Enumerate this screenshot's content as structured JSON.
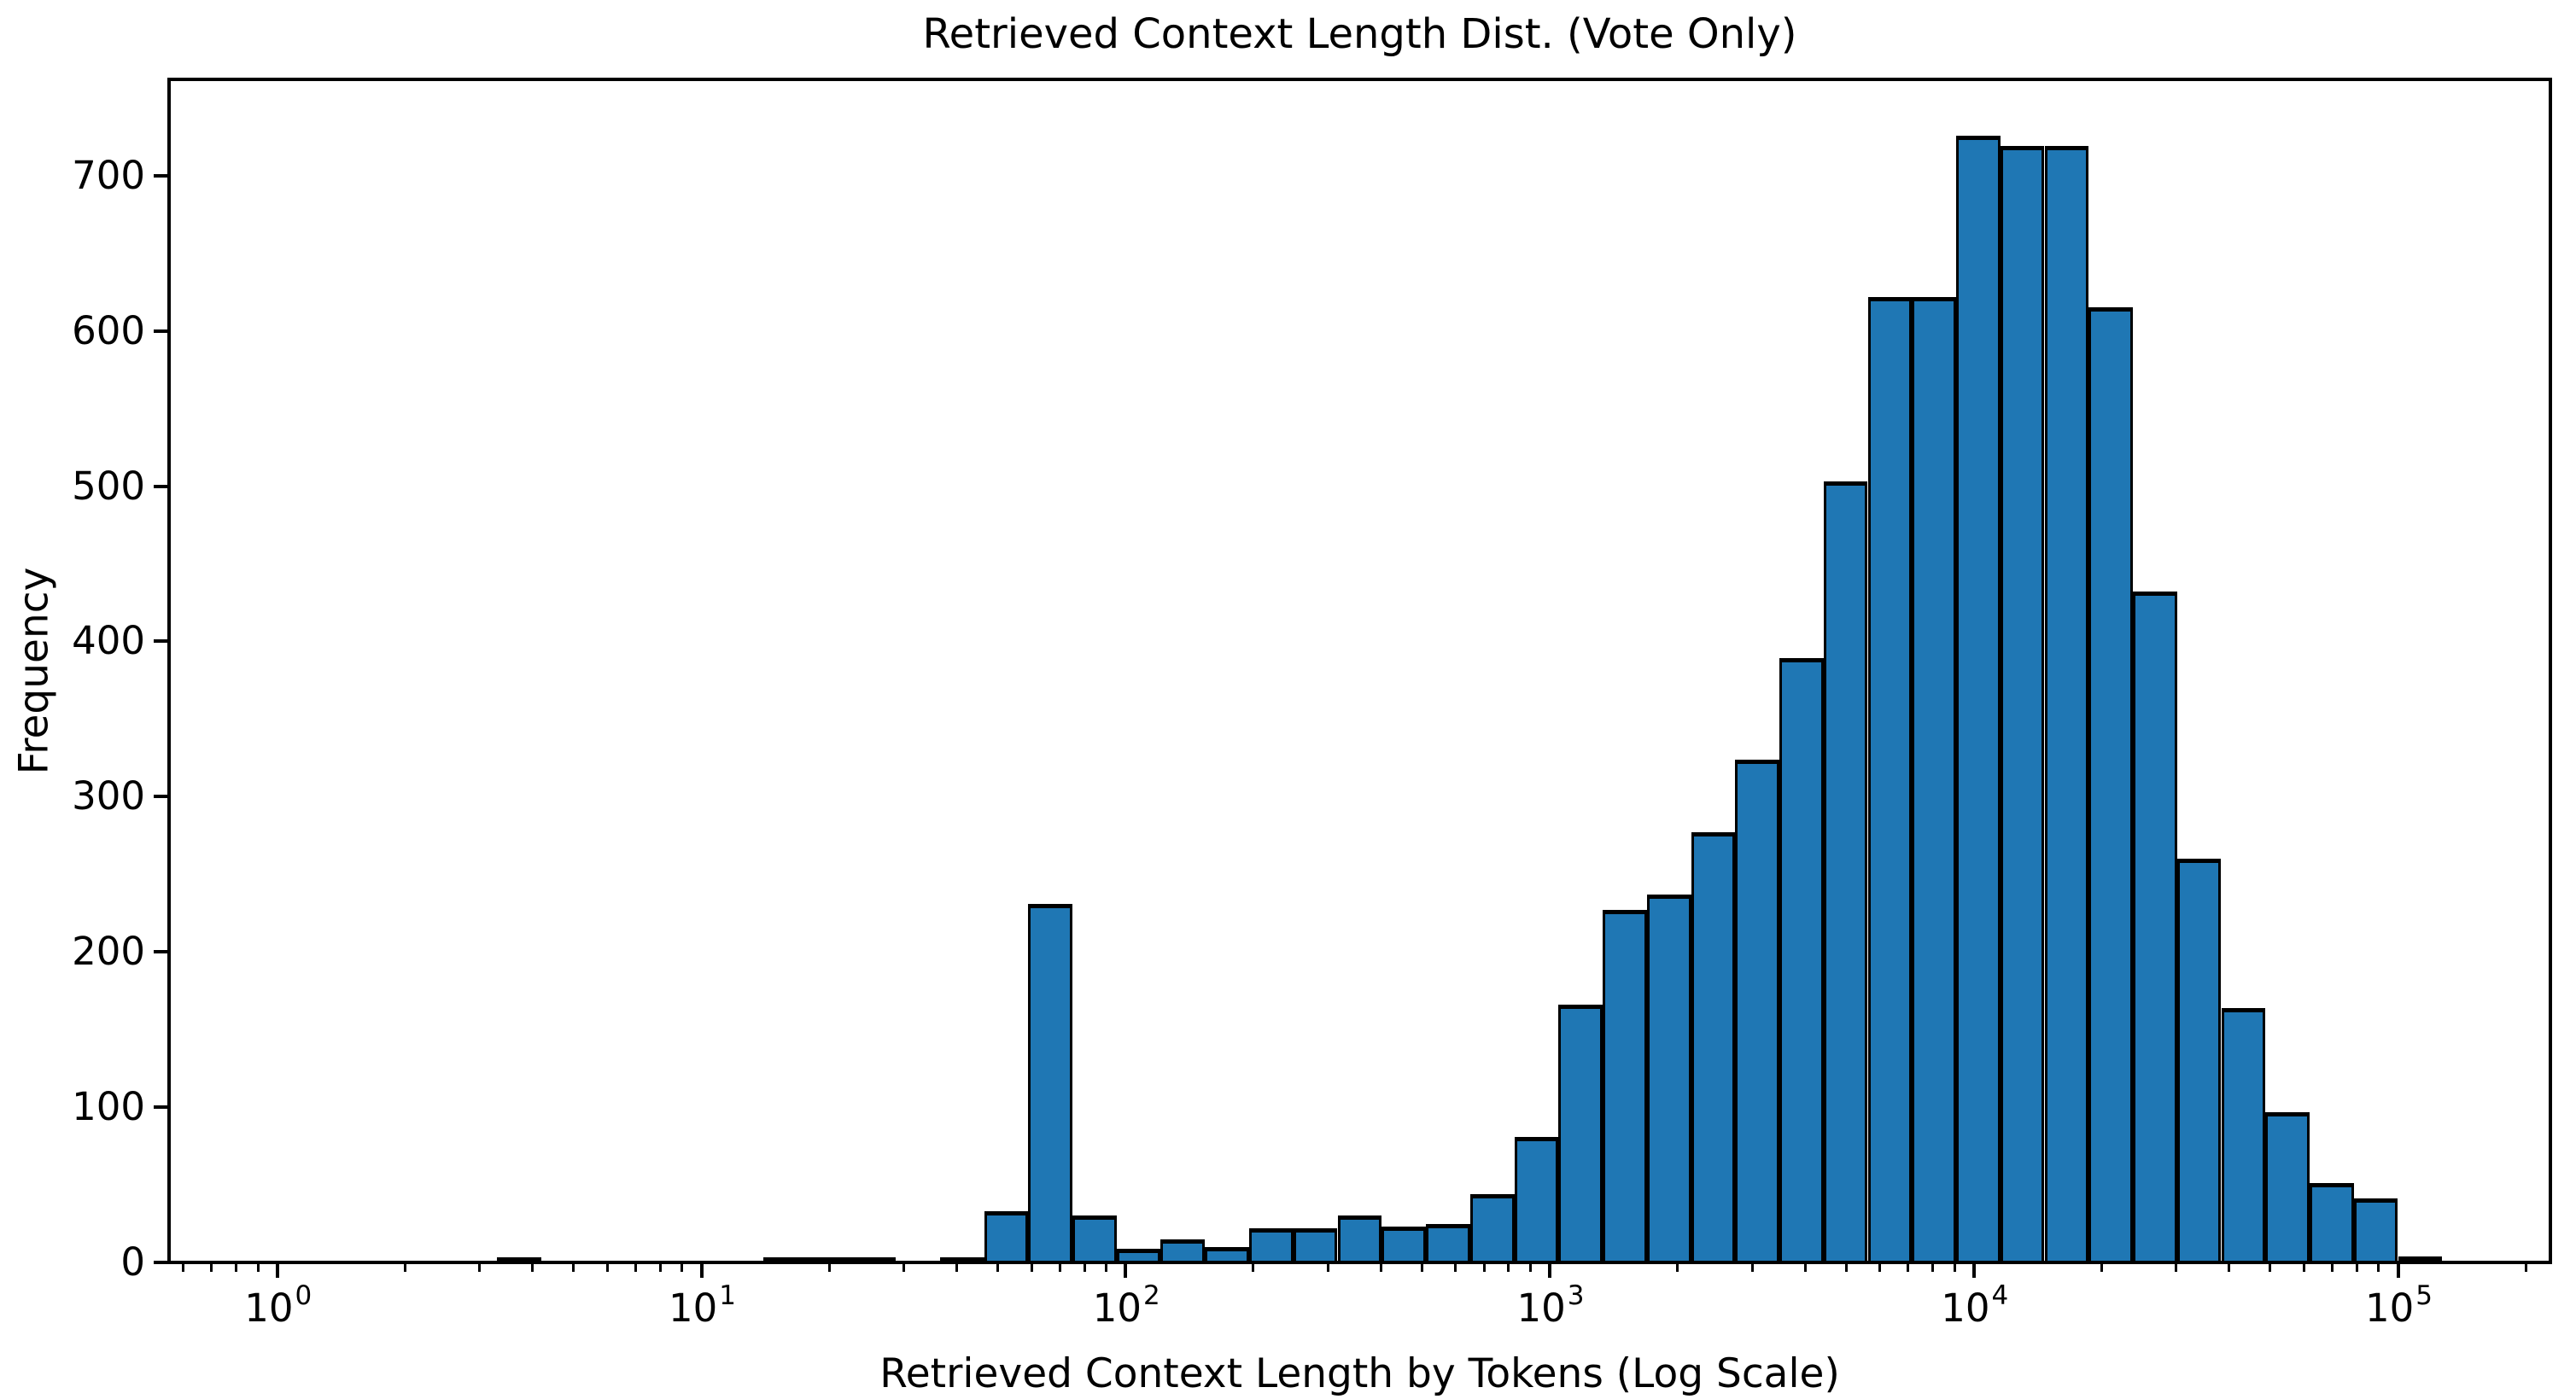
{
  "figure": {
    "title": "Retrieved Context Length Dist. (Vote Only)"
  },
  "axes": {
    "xlabel": "Retrieved Context Length by Tokens (Log Scale)",
    "ylabel": "Frequency",
    "x_scale": "log",
    "xlim_log10": [
      -0.2552,
      5.3593
    ],
    "ylim": [
      0,
      762
    ],
    "x_major_ticks": [
      {
        "base": "10",
        "exp": "0",
        "value": 1
      },
      {
        "base": "10",
        "exp": "1",
        "value": 10
      },
      {
        "base": "10",
        "exp": "2",
        "value": 100
      },
      {
        "base": "10",
        "exp": "3",
        "value": 1000
      },
      {
        "base": "10",
        "exp": "4",
        "value": 10000
      },
      {
        "base": "10",
        "exp": "5",
        "value": 100000
      }
    ],
    "y_ticks": [
      "0",
      "100",
      "200",
      "300",
      "400",
      "500",
      "600",
      "700"
    ]
  },
  "chart_data": {
    "type": "bar",
    "subtype": "histogram-log-bins",
    "title": "Retrieved Context Length Dist. (Vote Only)",
    "xlabel": "Retrieved Context Length by Tokens (Log Scale)",
    "ylabel": "Frequency",
    "x_scale": "log",
    "xlim_log10": [
      -0.2552,
      5.3593
    ],
    "ylim": [
      0,
      762
    ],
    "grid": false,
    "bar_color": "#1f77b4",
    "bar_edge_color": "#000000",
    "bins": [
      {
        "from": 3.3,
        "to": 4.2,
        "count": 2
      },
      {
        "from": 14,
        "to": 17.8,
        "count": 1
      },
      {
        "from": 17.8,
        "to": 22.6,
        "count": 1
      },
      {
        "from": 22.6,
        "to": 28.7,
        "count": 1
      },
      {
        "from": 36.5,
        "to": 46.4,
        "count": 1
      },
      {
        "from": 46.4,
        "to": 59,
        "count": 33
      },
      {
        "from": 59,
        "to": 75,
        "count": 231
      },
      {
        "from": 75,
        "to": 95.3,
        "count": 30
      },
      {
        "from": 95.3,
        "to": 121,
        "count": 9
      },
      {
        "from": 121,
        "to": 154,
        "count": 15
      },
      {
        "from": 154,
        "to": 196,
        "count": 10
      },
      {
        "from": 196,
        "to": 249,
        "count": 22
      },
      {
        "from": 249,
        "to": 316,
        "count": 22
      },
      {
        "from": 316,
        "to": 402,
        "count": 30
      },
      {
        "from": 402,
        "to": 511,
        "count": 23
      },
      {
        "from": 511,
        "to": 649,
        "count": 25
      },
      {
        "from": 649,
        "to": 825,
        "count": 44
      },
      {
        "from": 825,
        "to": 1049,
        "count": 81
      },
      {
        "from": 1049,
        "to": 1334,
        "count": 166
      },
      {
        "from": 1334,
        "to": 1695,
        "count": 227
      },
      {
        "from": 1695,
        "to": 2154,
        "count": 237
      },
      {
        "from": 2154,
        "to": 2738,
        "count": 277
      },
      {
        "from": 2738,
        "to": 3481,
        "count": 324
      },
      {
        "from": 3481,
        "to": 4424,
        "count": 389
      },
      {
        "from": 4424,
        "to": 5623,
        "count": 503
      },
      {
        "from": 5623,
        "to": 7148,
        "count": 622
      },
      {
        "from": 7148,
        "to": 9086,
        "count": 622
      },
      {
        "from": 9086,
        "to": 11548,
        "count": 726
      },
      {
        "from": 11548,
        "to": 14678,
        "count": 719
      },
      {
        "from": 14678,
        "to": 18657,
        "count": 719
      },
      {
        "from": 18657,
        "to": 23714,
        "count": 615
      },
      {
        "from": 23714,
        "to": 30142,
        "count": 432
      },
      {
        "from": 30142,
        "to": 38312,
        "count": 260
      },
      {
        "from": 38312,
        "to": 48697,
        "count": 164
      },
      {
        "from": 48697,
        "to": 61897,
        "count": 97
      },
      {
        "from": 61897,
        "to": 78676,
        "count": 51
      },
      {
        "from": 78676,
        "to": 100000,
        "count": 41
      },
      {
        "from": 100000,
        "to": 127117,
        "count": 4
      }
    ]
  }
}
